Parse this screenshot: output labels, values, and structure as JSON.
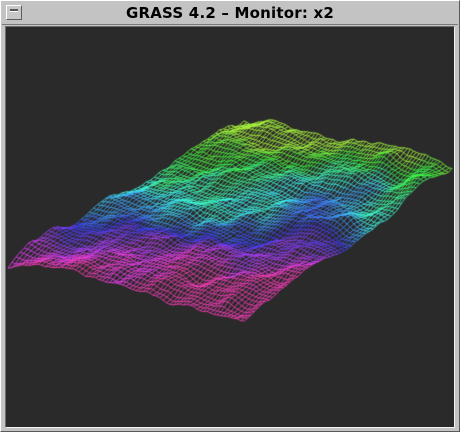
{
  "window": {
    "title": "GRASS 4.2 – Monitor: x2",
    "menu_button_icon": "window-menu-icon"
  },
  "monitor": {
    "background_color": "#2a2a2a",
    "content": "3d-wireframe-terrain"
  }
}
